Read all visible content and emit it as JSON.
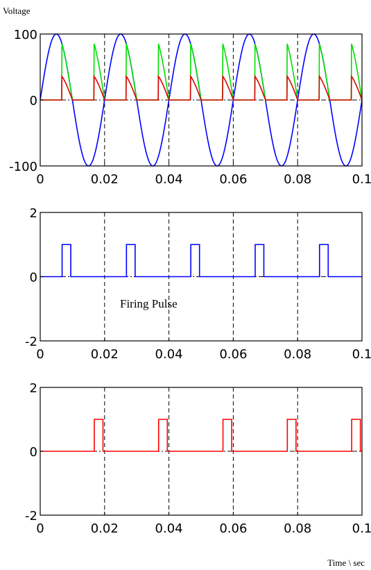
{
  "ylabel": "Voltage",
  "xlabel": "Time \\ sec",
  "chart_data": [
    {
      "type": "line",
      "panel": "voltage",
      "xlim": [
        0,
        0.1
      ],
      "ylim": [
        -100,
        100
      ],
      "xticks": [
        0,
        0.02,
        0.04,
        0.06,
        0.08,
        0.1
      ],
      "xtick_labels": [
        "0",
        "0.02",
        "0.04",
        "0.06",
        "0.08",
        "0.1"
      ],
      "yticks": [
        -100,
        0,
        100
      ],
      "ytick_labels": [
        "-100",
        "0",
        "100"
      ],
      "vgrid_x": [
        0.02,
        0.04,
        0.06,
        0.08
      ],
      "grid": "vertical dashed lines",
      "series": [
        {
          "color": "#0000ff",
          "kind": "sine",
          "amplitude": 100,
          "frequency_hz": 50
        },
        {
          "color": "#00dd00",
          "kind": "gated sine",
          "amplitude": 100,
          "frequency_hz": 50,
          "on_intervals": [
            [
              0.00675,
              0.01
            ],
            [
              0.01675,
              0.02
            ],
            [
              0.02675,
              0.03
            ],
            [
              0.03675,
              0.04
            ],
            [
              0.04675,
              0.05
            ],
            [
              0.05675,
              0.06
            ],
            [
              0.06675,
              0.07
            ],
            [
              0.07675,
              0.08
            ],
            [
              0.08675,
              0.09
            ],
            [
              0.09675,
              0.1
            ]
          ]
        },
        {
          "color": "#dd0000",
          "kind": "gated sine",
          "amplitude": 42,
          "frequency_hz": 50,
          "on_intervals": [
            [
              0.00675,
              0.01
            ],
            [
              0.01675,
              0.02
            ],
            [
              0.02675,
              0.03
            ],
            [
              0.03675,
              0.04
            ],
            [
              0.04675,
              0.05
            ],
            [
              0.05675,
              0.06
            ],
            [
              0.06675,
              0.07
            ],
            [
              0.07675,
              0.08
            ],
            [
              0.08675,
              0.09
            ],
            [
              0.09675,
              0.1
            ]
          ]
        }
      ]
    },
    {
      "type": "line",
      "panel": "firing-pulse-1",
      "xlim": [
        0,
        0.1
      ],
      "ylim": [
        -2,
        2
      ],
      "xticks": [
        0,
        0.02,
        0.04,
        0.06,
        0.08,
        0.1
      ],
      "xtick_labels": [
        "0",
        "0.02",
        "0.04",
        "0.06",
        "0.08",
        "0.1"
      ],
      "yticks": [
        -2,
        0,
        2
      ],
      "ytick_labels": [
        "-2",
        "0",
        "2"
      ],
      "vgrid_x": [
        0.02,
        0.04,
        0.06,
        0.08
      ],
      "annotation": "Firing Pulse",
      "series": [
        {
          "color": "#0000ff",
          "kind": "pulse train",
          "amplitude": 1,
          "pulses": [
            [
              0.0068,
              0.0095
            ],
            [
              0.0268,
              0.0295
            ],
            [
              0.0468,
              0.0495
            ],
            [
              0.0668,
              0.0695
            ],
            [
              0.0868,
              0.0895
            ]
          ]
        }
      ]
    },
    {
      "type": "line",
      "panel": "firing-pulse-2",
      "xlim": [
        0,
        0.1
      ],
      "ylim": [
        -2,
        2
      ],
      "xticks": [
        0,
        0.02,
        0.04,
        0.06,
        0.08,
        0.1
      ],
      "xtick_labels": [
        "0",
        "0.02",
        "0.04",
        "0.06",
        "0.08",
        "0.1"
      ],
      "yticks": [
        -2,
        0,
        2
      ],
      "ytick_labels": [
        "-2",
        "0",
        "2"
      ],
      "vgrid_x": [
        0.02,
        0.04,
        0.06,
        0.08
      ],
      "series": [
        {
          "color": "#ff0000",
          "kind": "pulse train",
          "amplitude": 1,
          "pulses": [
            [
              0.0168,
              0.0195
            ],
            [
              0.0368,
              0.0395
            ],
            [
              0.0568,
              0.0595
            ],
            [
              0.0768,
              0.0795
            ],
            [
              0.0968,
              0.0995
            ]
          ]
        }
      ]
    }
  ]
}
